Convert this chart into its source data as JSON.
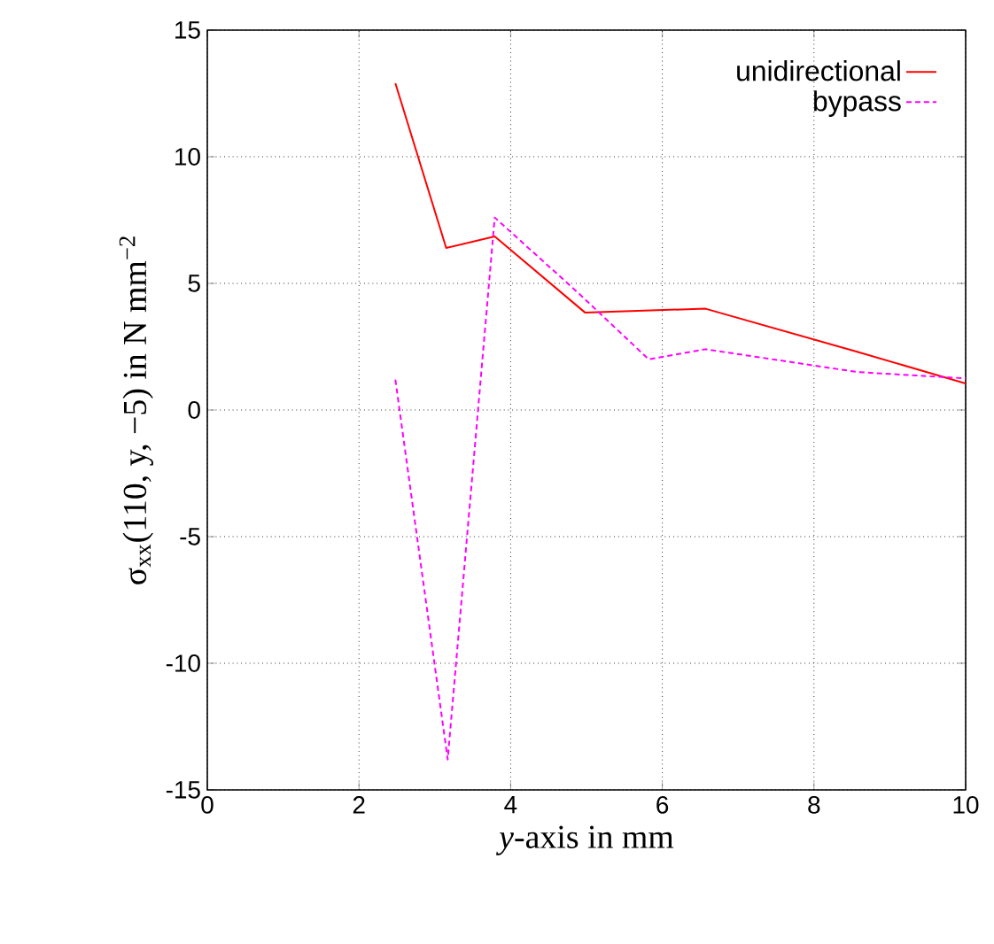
{
  "chart_data": {
    "type": "line",
    "xlabel": "*y*-axis in mm",
    "ylabel": "σ$_{xx}$(110, y, −5) in N mm$^{−2}$",
    "series": [
      {
        "name": "unidirectional",
        "color": "#ff0000",
        "line_style": "solid",
        "x": [
          2.48,
          3.15,
          3.79,
          4.98,
          6.57,
          8.57,
          10
        ],
        "values": [
          12.9,
          6.4,
          6.85,
          3.85,
          4.0,
          2.3,
          1.05
        ]
      },
      {
        "name": "bypass",
        "color": "#ff00ff",
        "line_style": "dashed",
        "x": [
          2.48,
          3.17,
          3.79,
          4.9,
          5.82,
          6.57,
          8.57,
          10
        ],
        "values": [
          1.2,
          -13.8,
          7.6,
          4.6,
          2.0,
          2.4,
          1.5,
          1.25
        ]
      }
    ],
    "xlim": [
      0,
      10
    ],
    "ylim": [
      -15,
      15
    ],
    "xticks": [
      0,
      2,
      4,
      6,
      8,
      10
    ],
    "yticks": [
      -15,
      -10,
      -5,
      0,
      5,
      10,
      15
    ],
    "grid": true,
    "legend": "top right",
    "marker": "none"
  }
}
